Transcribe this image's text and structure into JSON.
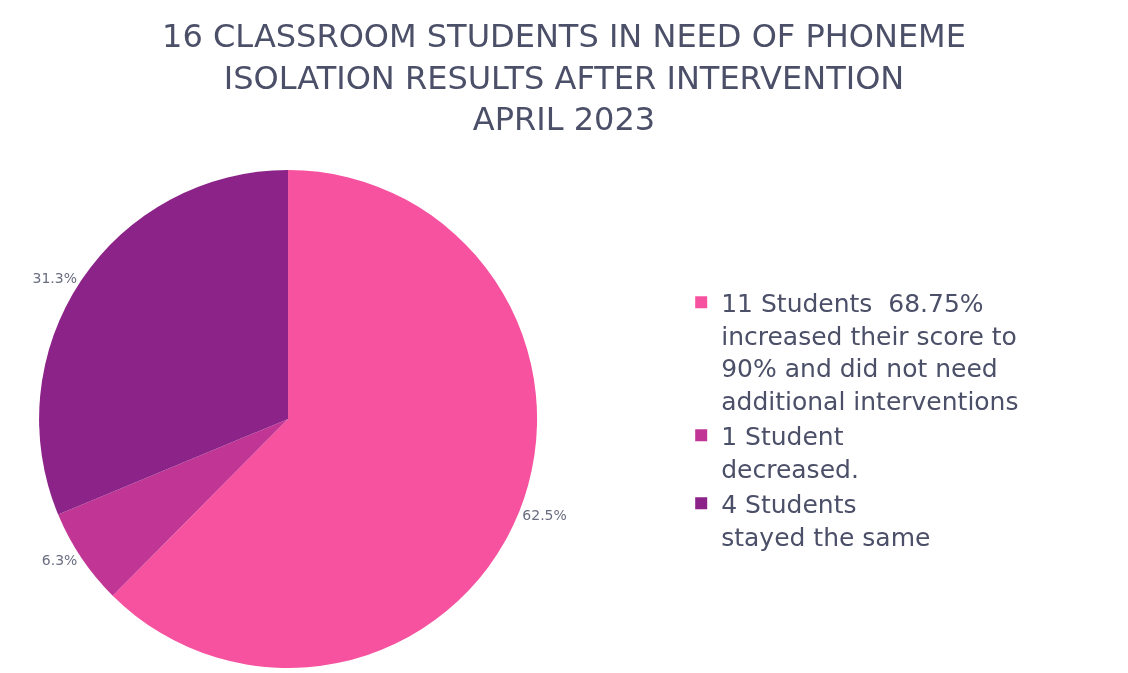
{
  "chart_data": {
    "type": "pie",
    "title": "16 CLASSROOM STUDENTS IN NEED OF PHONEME\nISOLATION RESULTS AFTER INTERVENTION\nAPRIL 2023",
    "categories": [
      "11 Students  68.75%\nincreased their score to\n90% and did not need\nadditional interventions",
      "1 Student\ndecreased.",
      "4 Students\nstayed the same"
    ],
    "values": [
      62.5,
      6.3,
      31.3
    ],
    "value_labels": [
      "62.5%",
      "6.3%",
      "31.3%"
    ],
    "colors": [
      "#f7529f",
      "#c13694",
      "#8b2389"
    ],
    "legend": "right"
  }
}
